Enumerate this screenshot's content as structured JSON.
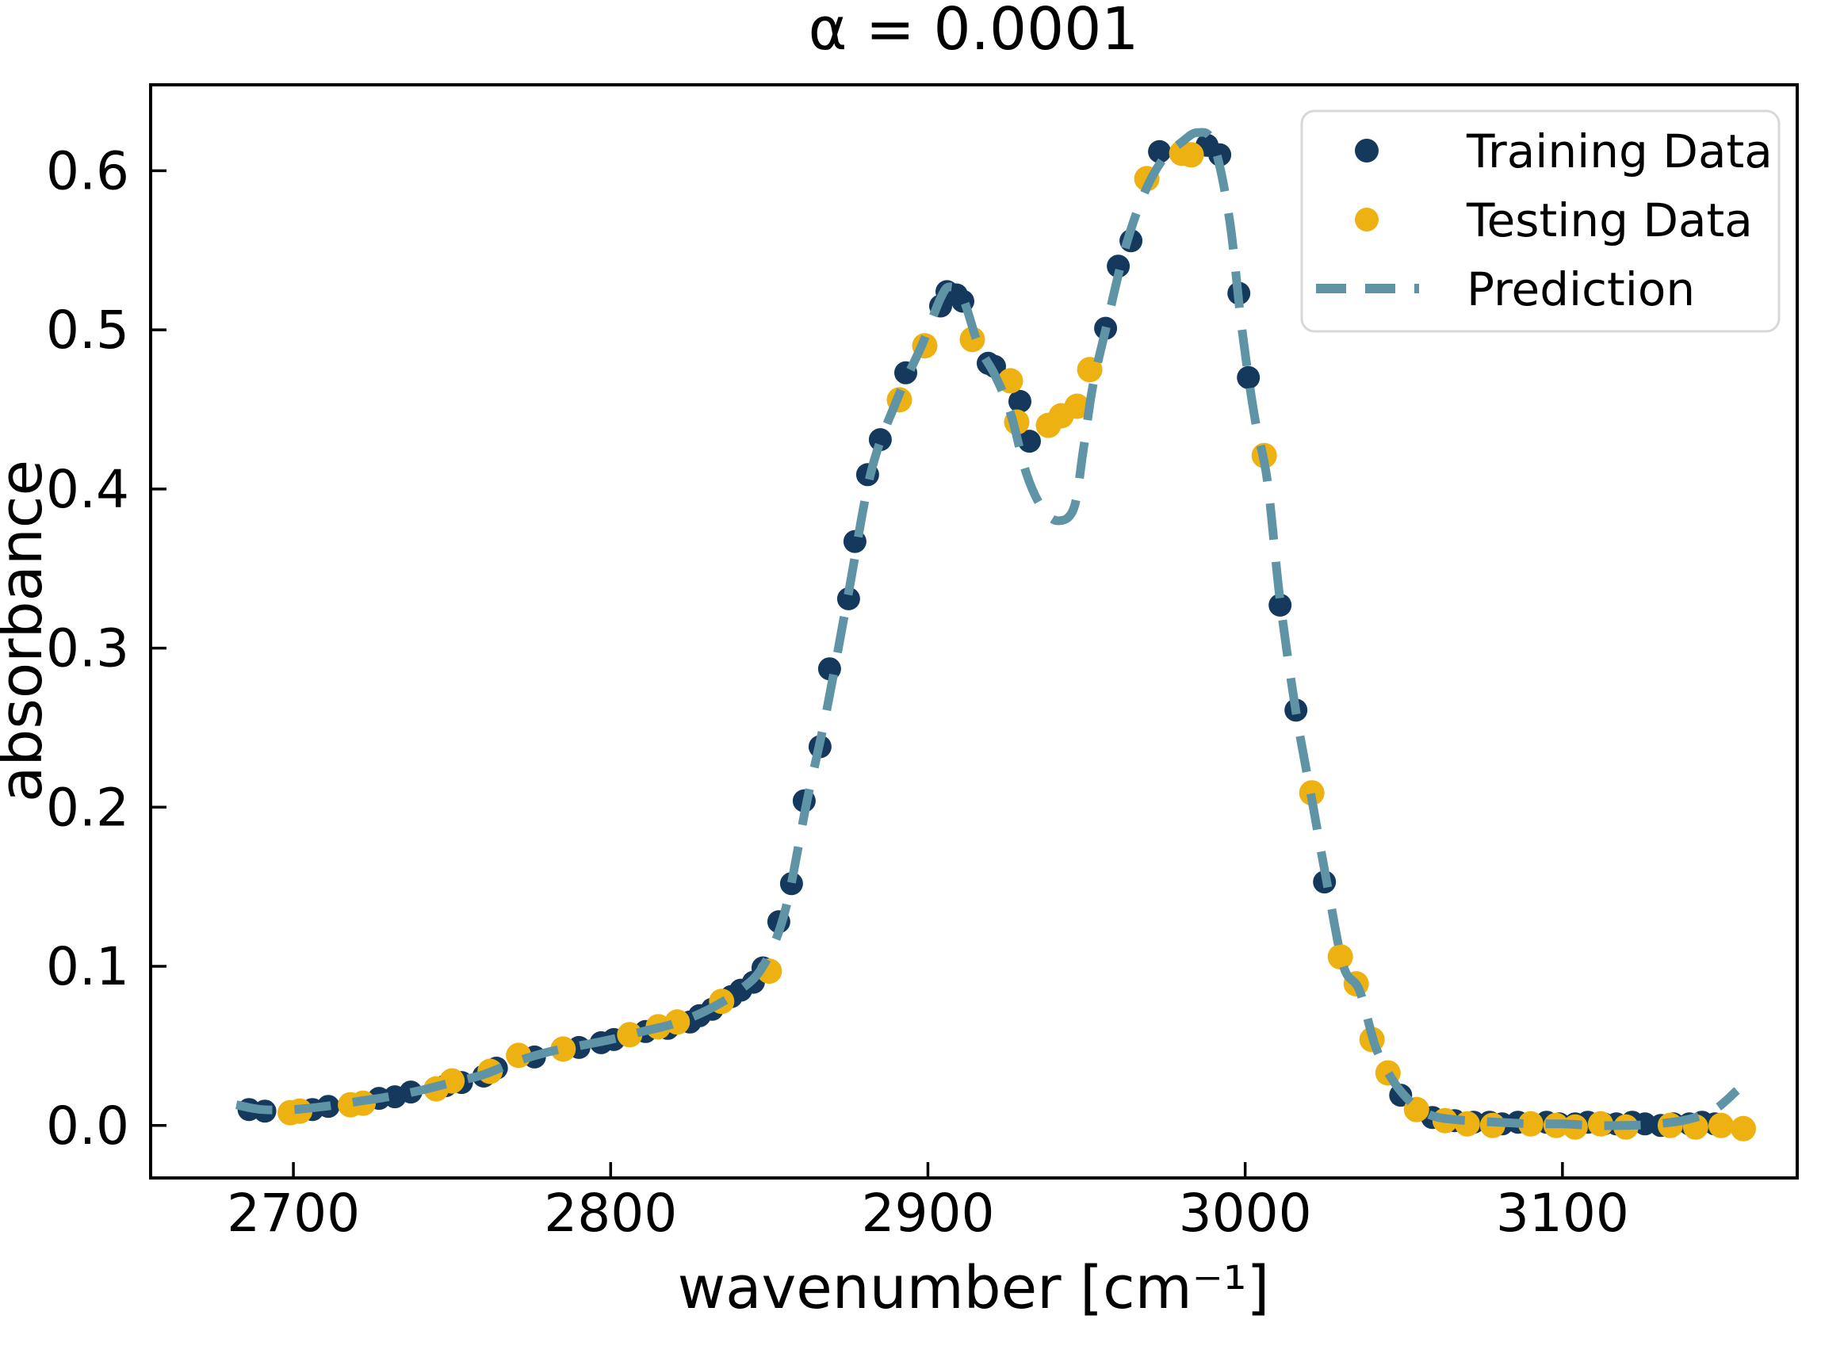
{
  "title": "α = 0.0001",
  "axes": {
    "xlabel": "wavenumber [cm⁻¹]",
    "ylabel": "absorbance",
    "x_ticks": [
      2700,
      2800,
      2900,
      3000,
      3100
    ],
    "y_ticks": [
      "0.0",
      "0.1",
      "0.2",
      "0.3",
      "0.4",
      "0.5",
      "0.6"
    ],
    "xlim": [
      2655,
      3174
    ],
    "ylim": [
      -0.033,
      0.654
    ]
  },
  "legend": {
    "position": "upper-right",
    "entries": [
      {
        "label": "Training Data",
        "marker": "circle",
        "color": "#14395d"
      },
      {
        "label": "Testing Data",
        "marker": "circle",
        "color": "#edb111"
      },
      {
        "label": "Prediction",
        "marker": "dashed-line",
        "color": "#5f93a6"
      }
    ]
  },
  "colors": {
    "training": "#14395d",
    "testing": "#edb111",
    "prediction": "#5f93a6",
    "spine": "#000000",
    "legend_border": "#d8d8d8",
    "background": "#ffffff"
  },
  "chart_data": {
    "type": "scatter",
    "title": "α = 0.0001",
    "xlabel": "wavenumber [cm⁻¹]",
    "ylabel": "absorbance",
    "xlim": [
      2655,
      3174
    ],
    "ylim": [
      -0.033,
      0.654
    ],
    "grid": false,
    "legend_position": "upper-right",
    "series": [
      {
        "name": "Training Data",
        "type": "scatter",
        "color": "#14395d",
        "x": [
          2686,
          2691,
          2706,
          2711,
          2727,
          2732,
          2737,
          2748,
          2753,
          2760,
          2764,
          2776,
          2790,
          2797,
          2801,
          2811,
          2818,
          2825,
          2828,
          2832,
          2838,
          2841,
          2845,
          2848,
          2853,
          2857,
          2861,
          2866,
          2869,
          2875,
          2877,
          2881,
          2885,
          2893,
          2904,
          2906,
          2909,
          2911,
          2919,
          2921,
          2929,
          2932,
          2956,
          2960,
          2964,
          2973,
          2988,
          2992,
          2998,
          3001,
          3011,
          3016,
          3025,
          3049,
          3059,
          3066,
          3072,
          3077,
          3081,
          3086,
          3090,
          3095,
          3099,
          3104,
          3108,
          3113,
          3117,
          3122,
          3126,
          3131,
          3135,
          3140,
          3144,
          3148
        ],
        "y": [
          0.01,
          0.009,
          0.01,
          0.012,
          0.017,
          0.018,
          0.021,
          0.025,
          0.027,
          0.031,
          0.036,
          0.043,
          0.049,
          0.052,
          0.054,
          0.059,
          0.061,
          0.065,
          0.069,
          0.073,
          0.081,
          0.085,
          0.09,
          0.099,
          0.128,
          0.152,
          0.204,
          0.238,
          0.287,
          0.331,
          0.367,
          0.409,
          0.431,
          0.473,
          0.515,
          0.524,
          0.522,
          0.518,
          0.479,
          0.477,
          0.455,
          0.43,
          0.501,
          0.54,
          0.556,
          0.612,
          0.616,
          0.61,
          0.523,
          0.47,
          0.327,
          0.261,
          0.153,
          0.019,
          0.005,
          0.003,
          0.002,
          0.002,
          0.001,
          0.002,
          0.001,
          0.002,
          0.001,
          0.001,
          0.002,
          0.001,
          0.001,
          0.002,
          0.001,
          0.0,
          0.001,
          0.001,
          0.002,
          0.001
        ]
      },
      {
        "name": "Testing Data",
        "type": "scatter",
        "color": "#edb111",
        "x": [
          2699,
          2702,
          2718,
          2722,
          2745,
          2750,
          2762,
          2771,
          2785,
          2806,
          2815,
          2821,
          2835,
          2850,
          2891,
          2899,
          2914,
          2926,
          2928,
          2938,
          2942,
          2947,
          2951,
          2969,
          2980,
          2983,
          3006,
          3021,
          3030,
          3035,
          3040,
          3045,
          3054,
          3063,
          3070,
          3078,
          3090,
          3098,
          3104,
          3112,
          3120,
          3134,
          3142,
          3150,
          3157
        ],
        "y": [
          0.008,
          0.009,
          0.013,
          0.014,
          0.023,
          0.028,
          0.034,
          0.044,
          0.048,
          0.057,
          0.062,
          0.065,
          0.078,
          0.097,
          0.456,
          0.49,
          0.494,
          0.468,
          0.442,
          0.44,
          0.446,
          0.452,
          0.475,
          0.595,
          0.611,
          0.61,
          0.421,
          0.209,
          0.106,
          0.089,
          0.054,
          0.033,
          0.01,
          0.003,
          0.001,
          0.0,
          0.001,
          0.0,
          -0.001,
          0.001,
          -0.001,
          0.0,
          -0.001,
          0.0,
          -0.002
        ]
      },
      {
        "name": "Prediction",
        "type": "line",
        "style": "dashed",
        "color": "#5f93a6",
        "x": [
          2682,
          2690,
          2700,
          2710,
          2720,
          2730,
          2740,
          2750,
          2760,
          2770,
          2780,
          2790,
          2800,
          2810,
          2820,
          2830,
          2840,
          2848,
          2855,
          2862,
          2868,
          2875,
          2882,
          2890,
          2898,
          2904,
          2907,
          2911,
          2916,
          2921,
          2926,
          2931,
          2936,
          2941,
          2946,
          2949,
          2952,
          2956,
          2962,
          2968,
          2974,
          2980,
          2985,
          2990,
          2995,
          2999,
          3003,
          3007,
          3011,
          3016,
          3021,
          3026,
          3031,
          3036,
          3041,
          3046,
          3051,
          3056,
          3061,
          3070,
          3080,
          3090,
          3100,
          3110,
          3120,
          3130,
          3140,
          3148,
          3155
        ],
        "y": [
          0.013,
          0.01,
          0.01,
          0.012,
          0.015,
          0.018,
          0.022,
          0.027,
          0.032,
          0.04,
          0.046,
          0.05,
          0.054,
          0.059,
          0.064,
          0.072,
          0.084,
          0.1,
          0.135,
          0.205,
          0.26,
          0.335,
          0.41,
          0.455,
          0.49,
          0.52,
          0.527,
          0.52,
          0.49,
          0.472,
          0.448,
          0.41,
          0.388,
          0.38,
          0.388,
          0.425,
          0.465,
          0.5,
          0.55,
          0.585,
          0.607,
          0.618,
          0.624,
          0.617,
          0.57,
          0.5,
          0.445,
          0.405,
          0.33,
          0.26,
          0.205,
          0.15,
          0.1,
          0.085,
          0.05,
          0.03,
          0.017,
          0.009,
          0.005,
          0.003,
          0.002,
          0.001,
          0.001,
          0.0,
          0.0,
          0.001,
          0.004,
          0.01,
          0.022
        ]
      }
    ]
  }
}
